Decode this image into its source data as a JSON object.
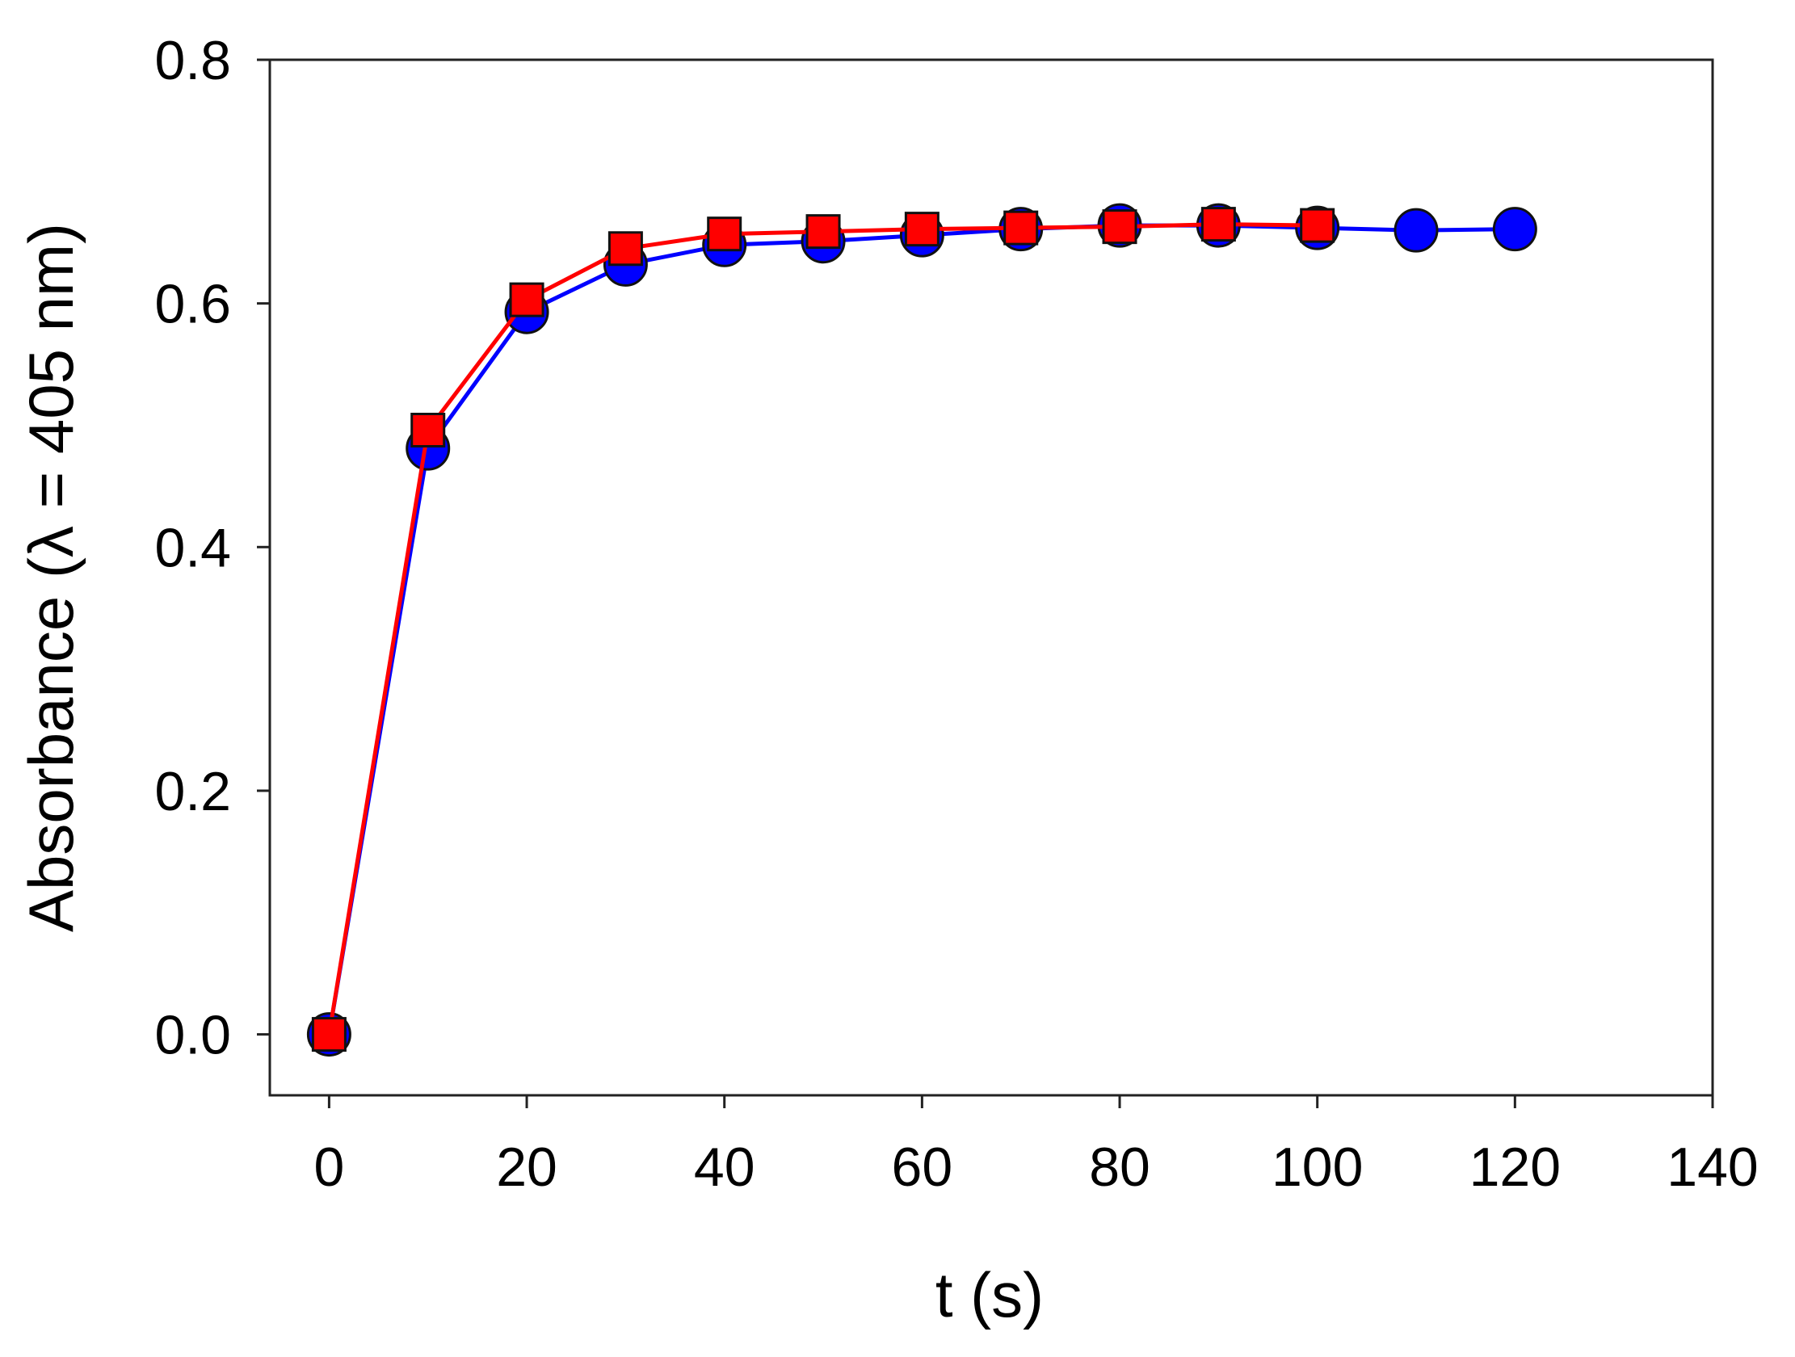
{
  "chart_data": {
    "type": "line",
    "title": "",
    "xlabel": "t (s)",
    "ylabel": "Absorbance (λ = 405 nm)",
    "xlim": [
      -6,
      140
    ],
    "ylim": [
      -0.05,
      0.8
    ],
    "xticks": [
      0,
      20,
      40,
      60,
      80,
      100,
      120,
      140
    ],
    "yticks": [
      0.0,
      0.2,
      0.4,
      0.6,
      0.8
    ],
    "xtick_labels": [
      "0",
      "20",
      "40",
      "60",
      "80",
      "100",
      "120",
      "140"
    ],
    "ytick_labels": [
      "0.0",
      "0.2",
      "0.4",
      "0.6",
      "0.8"
    ],
    "grid": false,
    "legend": "none",
    "series": [
      {
        "marker": "circle",
        "line_color": "#0000ff",
        "marker_fill": "#0000ff",
        "x": [
          0,
          10,
          20,
          30,
          40,
          50,
          60,
          70,
          80,
          90,
          100,
          110,
          120
        ],
        "y": [
          0.0,
          0.481,
          0.593,
          0.632,
          0.648,
          0.651,
          0.656,
          0.661,
          0.664,
          0.664,
          0.662,
          0.66,
          0.661
        ]
      },
      {
        "marker": "square",
        "line_color": "#ff0000",
        "marker_fill": "#ff0000",
        "x": [
          0,
          10,
          20,
          30,
          40,
          50,
          60,
          70,
          80,
          90,
          100
        ],
        "y": [
          0.0,
          0.496,
          0.603,
          0.645,
          0.657,
          0.659,
          0.661,
          0.662,
          0.663,
          0.665,
          0.664
        ]
      }
    ]
  }
}
